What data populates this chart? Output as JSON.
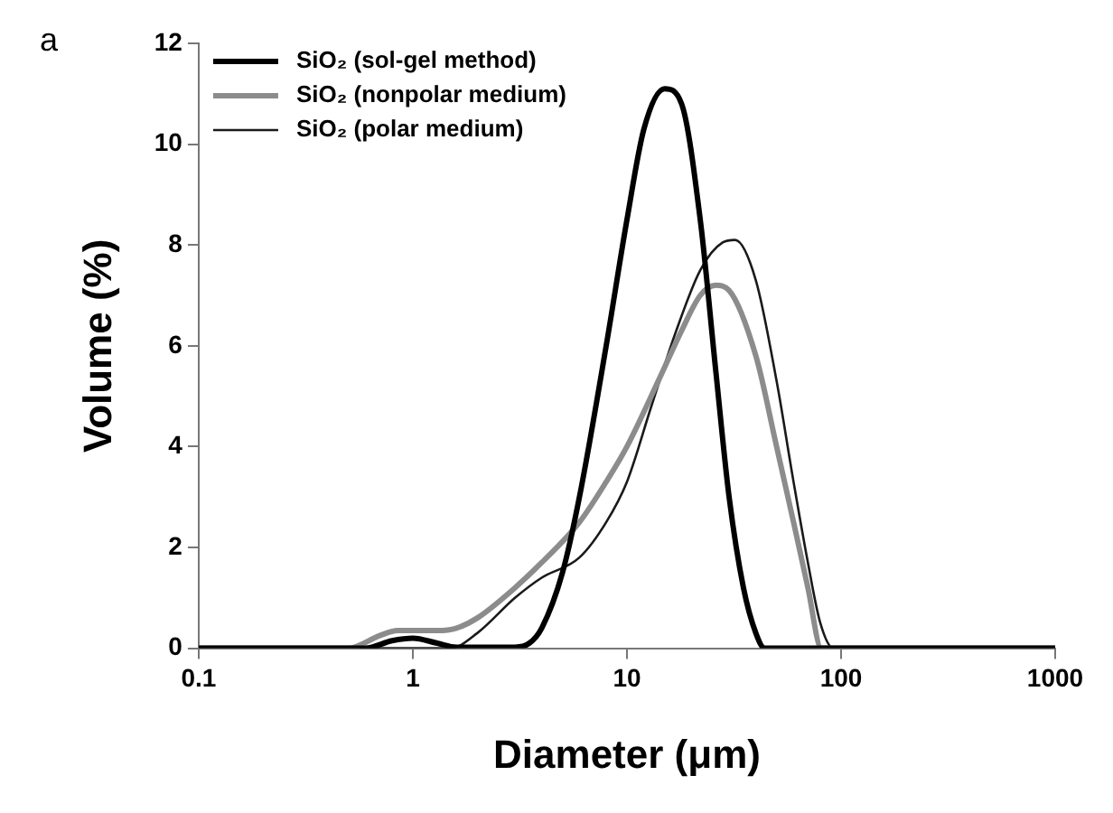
{
  "chart_data": {
    "type": "line",
    "xlabel": "Diameter (μm)",
    "ylabel": "Volume (%)",
    "annotations": [
      "a"
    ],
    "log": "x",
    "xlim": [
      0.1,
      1000
    ],
    "xticks": [
      0.1,
      1,
      10,
      100,
      1000
    ],
    "ylim": [
      0,
      12
    ],
    "yticks": [
      0,
      2,
      4,
      6,
      8,
      10,
      12
    ],
    "grid": false,
    "legend": "top left",
    "marker": "none",
    "line_style": "solid",
    "series": [
      {
        "name": "SiO₂ (sol-gel method)",
        "color": "#000000",
        "x": [
          0.1,
          0.6,
          0.8,
          1,
          1.3,
          1.6,
          3,
          3.5,
          4,
          5,
          6,
          8,
          10,
          12,
          15,
          18,
          22,
          26,
          30,
          35,
          40,
          44,
          1000
        ],
        "values": [
          0,
          0,
          0.15,
          0.2,
          0.1,
          0.02,
          0.02,
          0.1,
          0.4,
          1.5,
          3,
          6,
          8.5,
          10.3,
          11.1,
          10.8,
          8.5,
          5.5,
          3,
          1.2,
          0.3,
          0,
          0
        ]
      },
      {
        "name": "SiO₂ (nonpolar medium)",
        "color": "#8c8c8c",
        "x": [
          0.1,
          0.5,
          0.7,
          0.85,
          1.3,
          1.6,
          2,
          3,
          4,
          6,
          8,
          10,
          14,
          18,
          22,
          26,
          30,
          40,
          50,
          60,
          70,
          81,
          1000
        ],
        "values": [
          0,
          0,
          0.25,
          0.35,
          0.35,
          0.4,
          0.6,
          1.2,
          1.7,
          2.5,
          3.3,
          4,
          5.3,
          6.3,
          7,
          7.2,
          7.1,
          5.8,
          4,
          2.5,
          1.2,
          0,
          0
        ]
      },
      {
        "name": "SiO₂ (polar medium)",
        "color": "#1a1a1a",
        "x": [
          0.1,
          1.5,
          2,
          3,
          4,
          6,
          8,
          10,
          13,
          17,
          22,
          28,
          32,
          40,
          50,
          60,
          70,
          80,
          92,
          1000
        ],
        "values": [
          0,
          0,
          0.3,
          1,
          1.4,
          1.8,
          2.5,
          3.3,
          4.8,
          6.3,
          7.5,
          8.05,
          8.1,
          7.3,
          5.3,
          3.3,
          1.7,
          0.5,
          0,
          0
        ]
      }
    ]
  }
}
